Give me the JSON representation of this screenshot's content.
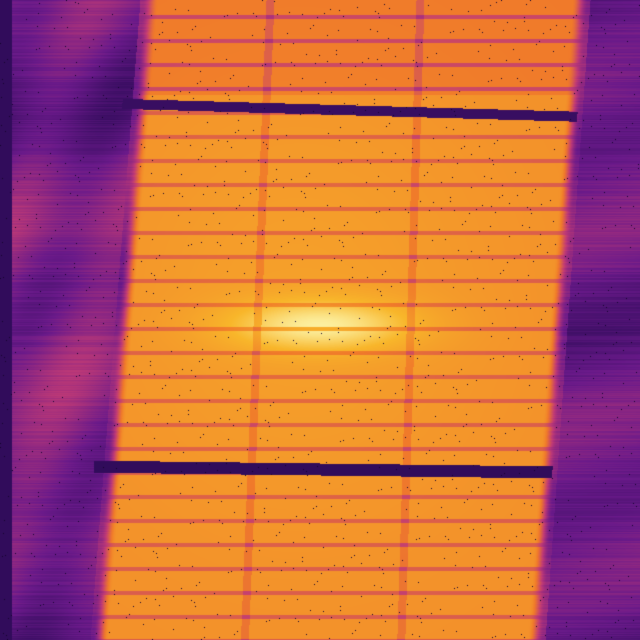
{
  "image": {
    "kind": "false-color thermal / intensity map",
    "colormap": "inferno",
    "colors": {
      "background": "#0d0221",
      "low": "#2a0a55",
      "mid_low": "#6a1a8a",
      "mid": "#c03a76",
      "mid_high": "#f07a2a",
      "high": "#f8b62a",
      "peak": "#fcf0a0"
    }
  }
}
